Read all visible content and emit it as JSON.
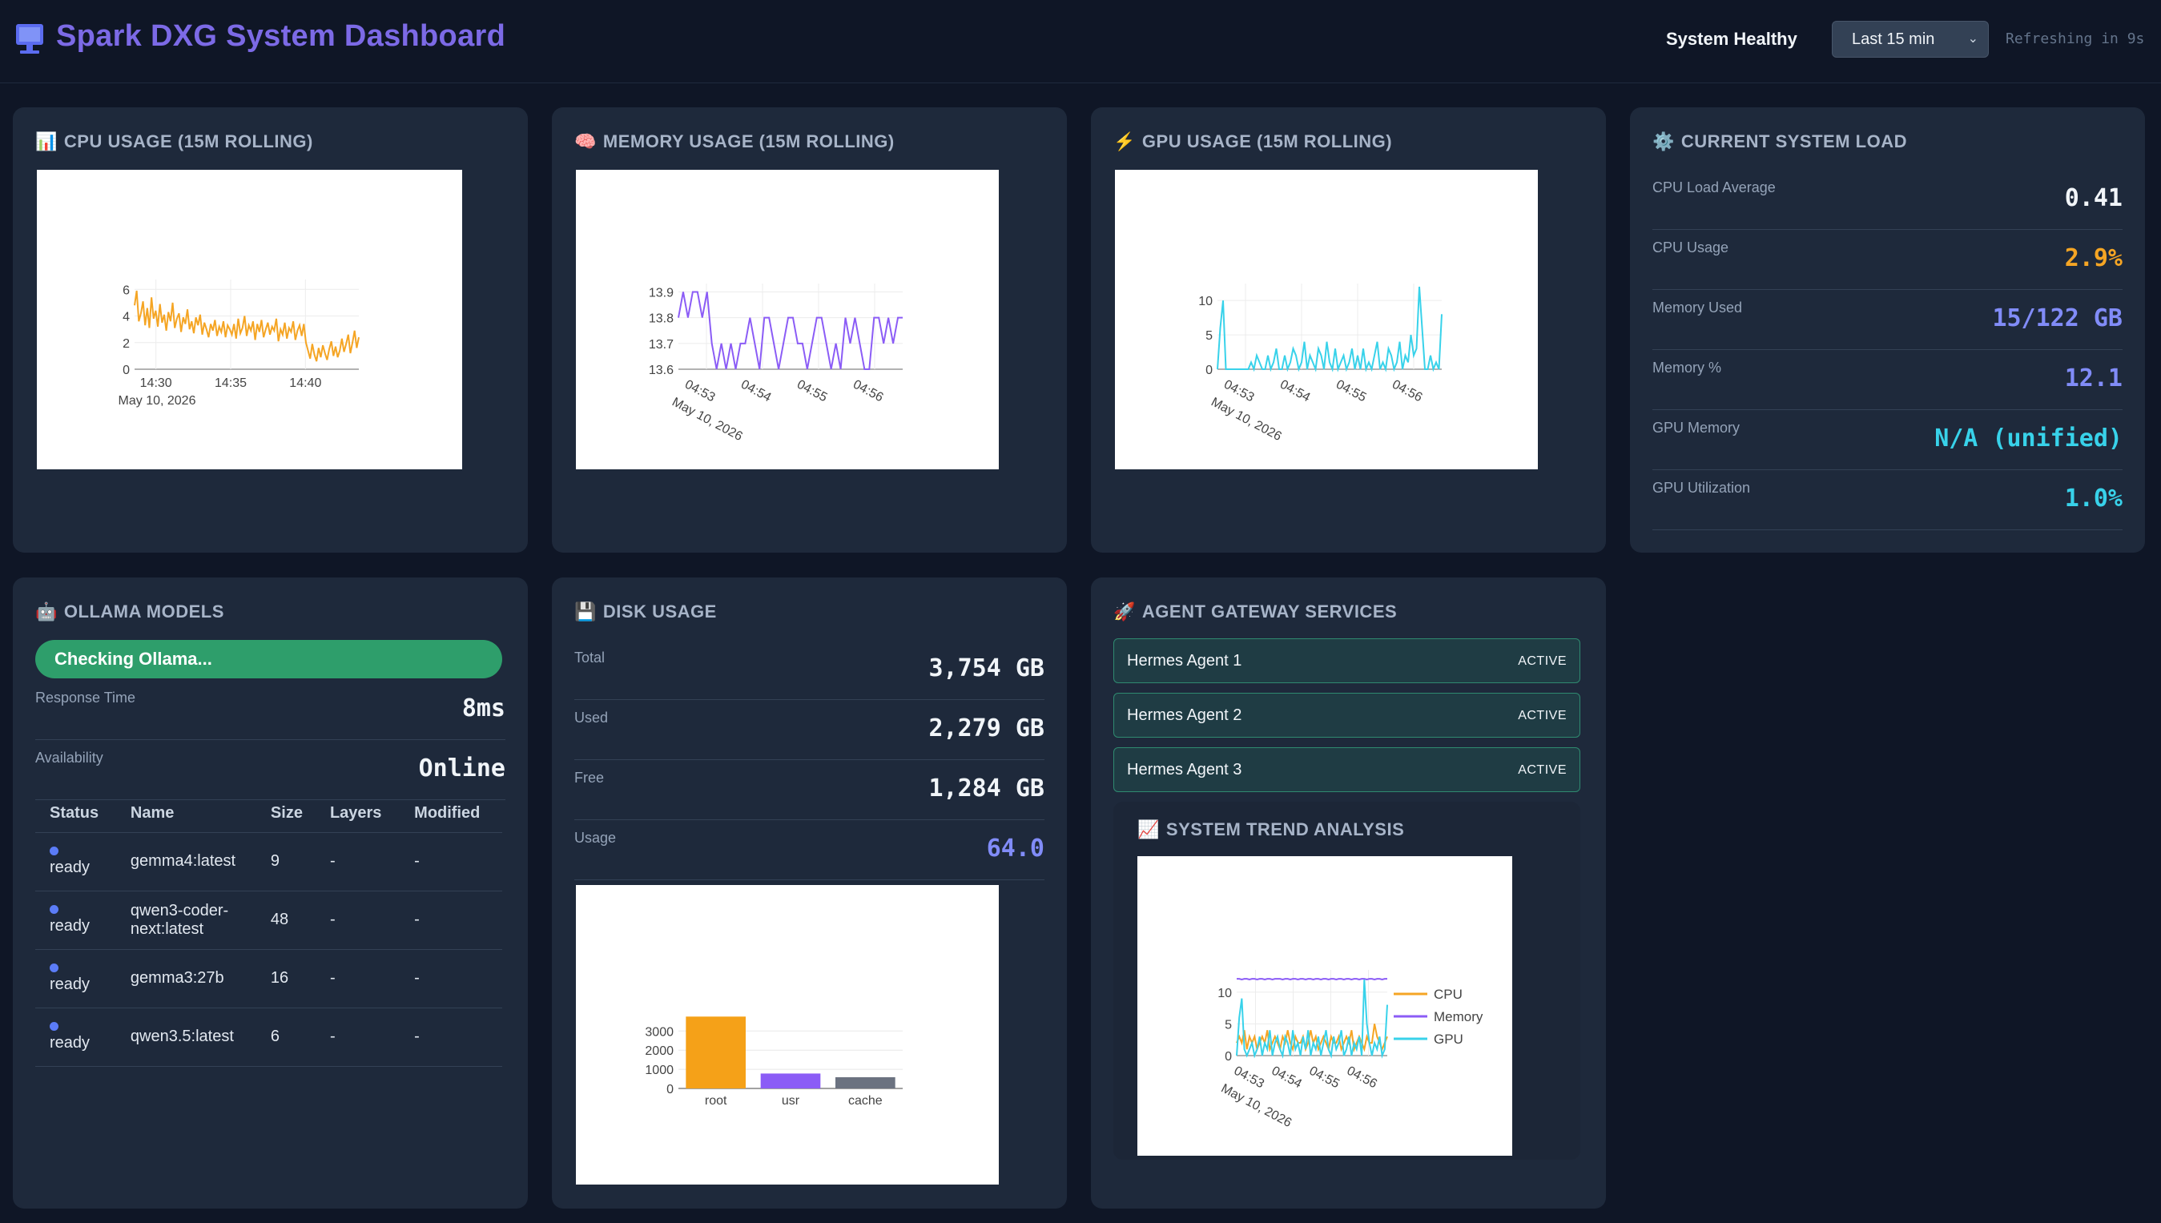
{
  "header": {
    "title": "Spark DXG System Dashboard",
    "health": "System Healthy",
    "range": "Last 15 min",
    "refresh": "Refreshing in 9s"
  },
  "cpu_card": {
    "icon": "📊",
    "title": "CPU USAGE (15M ROLLING)"
  },
  "mem_card": {
    "icon": "🧠",
    "title": "MEMORY USAGE (15M ROLLING)"
  },
  "gpu_card": {
    "icon": "⚡",
    "title": "GPU USAGE (15M ROLLING)"
  },
  "load": {
    "icon": "⚙️",
    "title": "CURRENT SYSTEM LOAD",
    "rows": [
      {
        "label": "CPU Load Average",
        "value": "0.41",
        "color": "#f1f5f9"
      },
      {
        "label": "CPU Usage",
        "value": "2.9%",
        "color": "#f5a524"
      },
      {
        "label": "Memory Used",
        "value": "15/122 GB",
        "color": "#818cf8"
      },
      {
        "label": "Memory %",
        "value": "12.1",
        "color": "#818cf8"
      },
      {
        "label": "GPU Memory",
        "value": "N/A (unified)",
        "color": "#38d2ea"
      },
      {
        "label": "GPU Utilization",
        "value": "1.0%",
        "color": "#38d2ea"
      }
    ]
  },
  "ollama": {
    "icon": "🤖",
    "title": "OLLAMA MODELS",
    "status": "Checking Ollama...",
    "response_label": "Response Time",
    "response_value": "8ms",
    "availability_label": "Availability",
    "availability_value": "Online",
    "columns": [
      "Status",
      "Name",
      "Size",
      "Layers",
      "Modified"
    ],
    "models": [
      {
        "status": "ready",
        "name": "gemma4:latest",
        "size": "9",
        "layers": "-",
        "modified": "-"
      },
      {
        "status": "ready",
        "name": "qwen3-coder-next:latest",
        "size": "48",
        "layers": "-",
        "modified": "-"
      },
      {
        "status": "ready",
        "name": "gemma3:27b",
        "size": "16",
        "layers": "-",
        "modified": "-"
      },
      {
        "status": "ready",
        "name": "qwen3.5:latest",
        "size": "6",
        "layers": "-",
        "modified": "-"
      }
    ]
  },
  "disk": {
    "icon": "💾",
    "title": "DISK USAGE",
    "rows": [
      {
        "label": "Total",
        "value": "3,754 GB",
        "color": "#f1f5f9"
      },
      {
        "label": "Used",
        "value": "2,279 GB",
        "color": "#f1f5f9"
      },
      {
        "label": "Free",
        "value": "1,284 GB",
        "color": "#f1f5f9"
      },
      {
        "label": "Usage",
        "value": "64.0",
        "color": "#818cf8"
      }
    ]
  },
  "gateway": {
    "icon": "🚀",
    "title": "AGENT GATEWAY SERVICES",
    "services": [
      {
        "name": "Hermes Agent 1",
        "status": "ACTIVE"
      },
      {
        "name": "Hermes Agent 2",
        "status": "ACTIVE"
      },
      {
        "name": "Hermes Agent 3",
        "status": "ACTIVE"
      }
    ]
  },
  "trend": {
    "icon": "📈",
    "title": "SYSTEM TREND ANALYSIS"
  },
  "chart_data": [
    {
      "id": "cpu",
      "type": "line",
      "x_ticks": [
        "14:30",
        "14:35",
        "14:40"
      ],
      "x_sub": "May 10, 2026",
      "y_ticks": [
        "0",
        "2",
        "4",
        "6"
      ],
      "ylim": [
        0,
        6.5
      ],
      "series": [
        {
          "color": "#f5a524",
          "values": [
            4.8,
            5.9,
            3.6,
            4.2,
            5.1,
            3.3,
            4.6,
            3.1,
            5.4,
            3.8,
            4.4,
            3.2,
            4.9,
            3.5,
            4.1,
            2.9,
            4.3,
            3.6,
            5.0,
            3.1,
            3.8,
            4.2,
            2.8,
            3.9,
            3.4,
            4.5,
            3.0,
            3.6,
            2.7,
            3.9,
            3.3,
            4.1,
            2.6,
            3.5,
            3.0,
            2.4,
            3.4,
            2.9,
            3.7,
            2.5,
            3.2,
            2.8,
            3.6,
            2.4,
            3.3,
            3.0,
            2.6,
            3.4,
            2.3,
            3.8,
            2.7,
            3.1,
            4.0,
            2.5,
            3.3,
            2.9,
            3.6,
            2.2,
            3.4,
            2.8,
            3.7,
            2.4,
            3.0,
            3.5,
            2.6,
            3.2,
            2.9,
            3.8,
            2.1,
            3.0,
            2.6,
            3.5,
            2.3,
            3.1,
            2.8,
            3.6,
            2.2,
            2.9,
            3.3,
            2.5,
            3.4,
            2.0,
            1.4,
            0.8,
            1.9,
            1.1,
            0.6,
            1.6,
            0.9,
            1.8,
            1.2,
            0.7,
            1.5,
            2.1,
            1.0,
            1.7,
            0.9,
            1.4,
            2.3,
            1.3,
            1.9,
            2.6,
            1.2,
            2.0,
            2.9,
            1.6,
            2.4
          ]
        }
      ]
    },
    {
      "id": "memory",
      "type": "line",
      "x_ticks": [
        "04:53",
        "04:54",
        "04:55",
        "04:56"
      ],
      "x_sub": "May 10, 2026",
      "y_ticks": [
        "13.6",
        "13.7",
        "13.8",
        "13.9"
      ],
      "ylim": [
        13.6,
        13.92
      ],
      "series": [
        {
          "color": "#8b5cf6",
          "values": [
            13.8,
            13.9,
            13.8,
            13.9,
            13.9,
            13.8,
            13.9,
            13.7,
            13.6,
            13.7,
            13.6,
            13.7,
            13.6,
            13.7,
            13.7,
            13.8,
            13.7,
            13.6,
            13.8,
            13.8,
            13.7,
            13.6,
            13.7,
            13.8,
            13.8,
            13.7,
            13.7,
            13.6,
            13.7,
            13.8,
            13.8,
            13.7,
            13.6,
            13.7,
            13.6,
            13.8,
            13.7,
            13.8,
            13.7,
            13.6,
            13.6,
            13.8,
            13.8,
            13.7,
            13.8,
            13.7,
            13.8,
            13.8
          ]
        }
      ]
    },
    {
      "id": "gpu",
      "type": "line",
      "x_ticks": [
        "04:53",
        "04:54",
        "04:55",
        "04:56"
      ],
      "x_sub": "May 10, 2026",
      "y_ticks": [
        "0",
        "5",
        "10"
      ],
      "ylim": [
        0,
        12
      ],
      "series": [
        {
          "color": "#38d2ea",
          "values": [
            0,
            6,
            10,
            0,
            0,
            0,
            0,
            0,
            0,
            0,
            0,
            0,
            1,
            0,
            2,
            1,
            0,
            0,
            2,
            0,
            1,
            3,
            0,
            0,
            2,
            0,
            1,
            3,
            2,
            0,
            1,
            4,
            0,
            2,
            1,
            0,
            3,
            2,
            0,
            4,
            1,
            0,
            3,
            0,
            1,
            2,
            0,
            1,
            3,
            0,
            2,
            0,
            3,
            0,
            1,
            0,
            2,
            4,
            0,
            1,
            0,
            3,
            2,
            0,
            1,
            4,
            0,
            2,
            1,
            5,
            2,
            3,
            12,
            6,
            0,
            0,
            2,
            0,
            1,
            0,
            8
          ]
        }
      ]
    },
    {
      "id": "disk",
      "type": "bar",
      "categories": [
        "root",
        "usr",
        "cache"
      ],
      "values": [
        3754,
        779,
        586
      ],
      "colors": [
        "#f5a118",
        "#8b5cf6",
        "#6b7280"
      ],
      "y_ticks": [
        "0",
        "1000",
        "2000",
        "3000"
      ],
      "ylim": [
        0,
        4100
      ]
    },
    {
      "id": "trend",
      "type": "line",
      "x_ticks": [
        "04:53",
        "04:54",
        "04:55",
        "04:56"
      ],
      "x_sub": "May 10, 2026",
      "y_ticks": [
        "0",
        "5",
        "10"
      ],
      "ylim": [
        0,
        13
      ],
      "legend": "right",
      "series": [
        {
          "name": "CPU",
          "color": "#f5a524",
          "values": [
            2,
            3,
            2,
            4,
            1,
            3,
            2,
            3,
            1,
            2,
            3,
            2,
            4,
            1,
            2,
            3,
            2,
            1,
            3,
            2,
            4,
            2,
            1,
            3,
            2,
            2,
            3,
            1,
            2,
            4,
            2,
            3,
            1,
            2,
            3,
            2,
            1,
            3,
            2,
            2,
            3,
            1,
            2,
            3,
            2,
            4,
            1,
            2,
            3,
            2,
            1,
            3,
            2,
            2,
            5,
            3,
            2,
            1,
            2,
            3
          ]
        },
        {
          "name": "Memory",
          "color": "#8b5cf6",
          "values": [
            12.1,
            12.1,
            12.0,
            12.1,
            12.1,
            12.0,
            12.1,
            12.1,
            12.0,
            12.1,
            12.1,
            12.0,
            12.1,
            12.1,
            12.0,
            12.1,
            12.1,
            12.1,
            12.0,
            12.1,
            12.1,
            12.0,
            12.1,
            12.1,
            12.0,
            12.1,
            12.1,
            12.0,
            12.1,
            12.1,
            12.0,
            12.1,
            12.1,
            12.0,
            12.1,
            12.1,
            12.0,
            12.1,
            12.1,
            12.0,
            12.1,
            12.1,
            12.0,
            12.1,
            12.1,
            12.0,
            12.1,
            12.1,
            12.0,
            12.1,
            12.1,
            12.0,
            12.1,
            12.1,
            12.0,
            12.1,
            12.1,
            12.0,
            12.1,
            12.1
          ]
        },
        {
          "name": "GPU",
          "color": "#38d2ea",
          "values": [
            0,
            6,
            9,
            1,
            0,
            1,
            2,
            0,
            1,
            3,
            0,
            2,
            1,
            4,
            0,
            2,
            3,
            1,
            0,
            3,
            2,
            0,
            4,
            1,
            2,
            0,
            3,
            1,
            4,
            0,
            2,
            1,
            3,
            0,
            2,
            4,
            1,
            0,
            3,
            1,
            2,
            4,
            0,
            1,
            3,
            0,
            2,
            1,
            3,
            0,
            12,
            5,
            2,
            0,
            2,
            1,
            3,
            0,
            1,
            8
          ]
        }
      ]
    }
  ]
}
